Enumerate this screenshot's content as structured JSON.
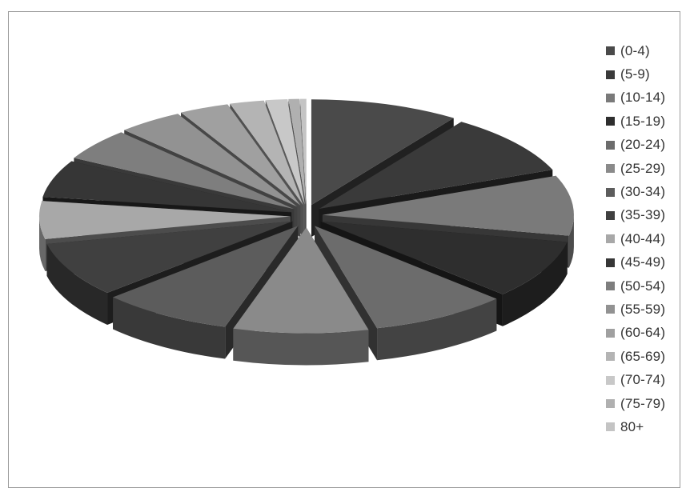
{
  "chart_data": {
    "type": "pie",
    "style": "3d-exploded",
    "legend_position": "right",
    "categories": [
      "(0-4)",
      "(5-9)",
      "(10-14)",
      "(15-19)",
      "(20-24)",
      "(25-29)",
      "(30-34)",
      "(35-39)",
      "(40-44)",
      "(45-49)",
      "(50-54)",
      "(55-59)",
      "(60-64)",
      "(65-69)",
      "(70-74)",
      "(75-79)",
      "80+"
    ],
    "values": [
      9.6,
      9.4,
      9.2,
      9.0,
      8.9,
      8.7,
      8.5,
      8.4,
      5.8,
      5.7,
      4.9,
      4.2,
      3.2,
      2.2,
      1.4,
      0.7,
      0.4
    ],
    "colors": [
      "#4a4a4a",
      "#3a3a3a",
      "#7a7a7a",
      "#2e2e2e",
      "#6c6c6c",
      "#8a8a8a",
      "#5c5c5c",
      "#404040",
      "#a8a8a8",
      "#363636",
      "#7e7e7e",
      "#929292",
      "#a0a0a0",
      "#b4b4b4",
      "#c8c8c8",
      "#b0b0b0",
      "#c4c4c4"
    ]
  }
}
